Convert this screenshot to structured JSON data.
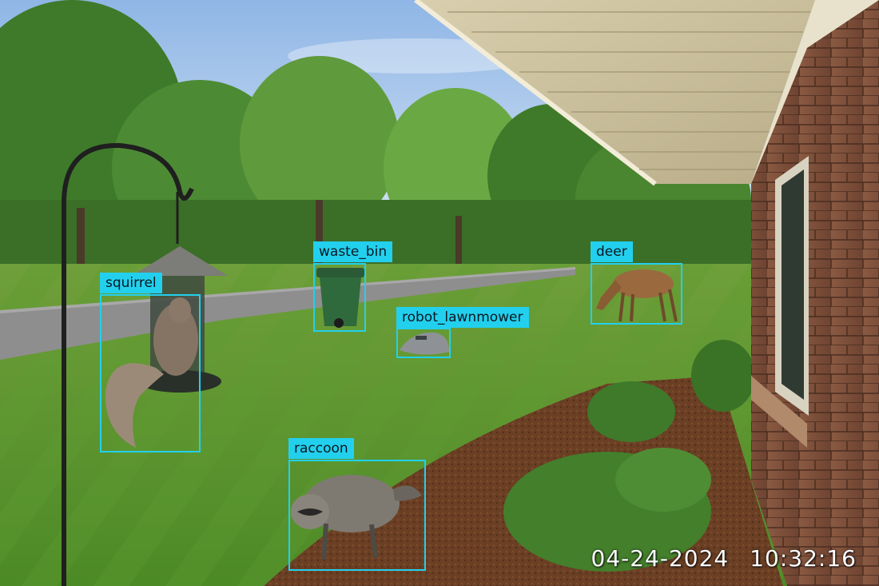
{
  "overlay": {
    "box_color": "#22d0ee",
    "label_text_color": "#0b1720"
  },
  "detections": [
    {
      "id": "squirrel",
      "label": "squirrel"
    },
    {
      "id": "waste_bin",
      "label": "waste_bin"
    },
    {
      "id": "robot_lawnmower",
      "label": "robot_lawnmower"
    },
    {
      "id": "deer",
      "label": "deer"
    },
    {
      "id": "raccoon",
      "label": "raccoon"
    }
  ],
  "timestamp": {
    "date": "04-24-2024",
    "time": "10:32:16"
  }
}
